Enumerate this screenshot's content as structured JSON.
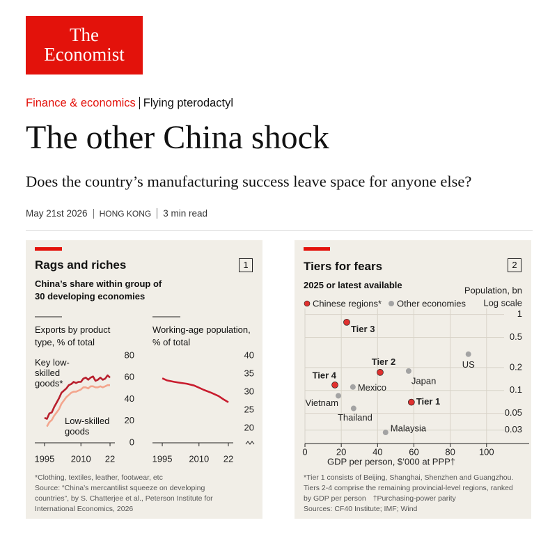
{
  "header": {
    "logo_line1": "The",
    "logo_line2": "Economist",
    "section": "Finance & economics",
    "rubric": "Flying pterodactyl",
    "title": "The other China shock",
    "subtitle": "Does the country’s manufacturing success leave space for anyone else?",
    "date": "May 21st 2026",
    "location": "HONG KONG",
    "read_time": "3 min read"
  },
  "panels": [
    {
      "title": "Rags and riches",
      "number": 1,
      "subtitle": "China’s share within group of 30 developing economies",
      "notes": [
        "*Clothing, textiles, leather, footwear, etc",
        "Source: “China’s mercantilist squeeze on developing countries”, by S. Chatterjee et al., Peterson Institute for International Economics, 2026"
      ]
    },
    {
      "title": "Tiers for fears",
      "number": 2,
      "subtitle": "2025 or latest available",
      "notes": [
        "*Tier 1 consists of Beijing, Shanghai, Shenzhen and Guangzhou. Tiers 2-4 comprise the remaining provincial-level regions, ranked by GDP per person",
        "†Purchasing-power parity",
        "Sources: CF40 Institute; IMF; Wind"
      ]
    }
  ],
  "chart_data": [
    {
      "type": "line",
      "title": "Exports by product type, % of total",
      "x": [
        1995,
        1996,
        1997,
        1998,
        1999,
        2000,
        2001,
        2002,
        2003,
        2004,
        2005,
        2006,
        2007,
        2008,
        2009,
        2010,
        2011,
        2012,
        2013,
        2014,
        2015,
        2016,
        2017,
        2018,
        2019,
        2020,
        2021,
        2022
      ],
      "series": [
        {
          "name": "Key low-skilled goods*",
          "color": "#b81f2d",
          "values": [
            23,
            22,
            27,
            28,
            33,
            37,
            41,
            46,
            48,
            50,
            53,
            54,
            56,
            55,
            56,
            56,
            59,
            60,
            58,
            60,
            61,
            57,
            58,
            60,
            58,
            59,
            62,
            60
          ]
        },
        {
          "name": "Low-skilled goods",
          "color": "#f3a58d",
          "values": [
            null,
            15,
            19,
            21,
            25,
            28,
            31,
            36,
            39,
            42,
            44,
            46,
            47,
            47,
            48,
            49,
            51,
            51,
            50,
            52,
            52,
            51,
            51,
            52,
            51,
            52,
            53,
            53
          ]
        }
      ],
      "xlim": [
        1991,
        2024
      ],
      "xticks": [
        1995,
        2010,
        {
          "value": 2022,
          "label": "22"
        }
      ],
      "ylim": [
        0,
        80
      ],
      "yticks": [
        0,
        20,
        40,
        60,
        80
      ]
    },
    {
      "type": "line",
      "title": "Working-age population, % of total",
      "x": [
        1995,
        1997,
        2000,
        2003,
        2005,
        2008,
        2010,
        2012,
        2015,
        2018,
        2020,
        2022
      ],
      "series": [
        {
          "color": "#c81c2e",
          "values": [
            33.8,
            33.2,
            32.8,
            32.5,
            32.3,
            31.8,
            31.2,
            30.6,
            29.8,
            28.9,
            28.0,
            27.2
          ]
        }
      ],
      "xlim": [
        1991,
        2024
      ],
      "xticks": [
        1995,
        2010,
        {
          "value": 2022,
          "label": "22"
        }
      ],
      "ylim": [
        16,
        40
      ],
      "yticks": [
        20,
        25,
        30,
        35,
        40
      ],
      "axis_break": true
    },
    {
      "type": "scatter",
      "x_label": "GDP per person, $’000 at PPP†",
      "y_label": "Population, bn",
      "log_scale_label": "Log scale",
      "log_y": true,
      "series": [
        {
          "name": "Chinese regions*",
          "color": "#e0312f",
          "x": [
            23,
            41.4,
            16.5,
            58.6
          ],
          "values": [
            0.79,
            0.173,
            0.118,
            0.07
          ],
          "labels": [
            "Tier 3",
            "Tier 2",
            "Tier 4",
            "Tier 1"
          ]
        },
        {
          "name": "Other economies",
          "color": "#a3a3a3",
          "x": [
            90,
            26.4,
            57.1,
            18.4,
            26.8,
            44.4
          ],
          "values": [
            0.3,
            0.111,
            0.18,
            0.085,
            0.058,
            0.028
          ],
          "labels": [
            "US",
            "Mexico",
            "Japan",
            "Vietnam",
            "Thailand",
            "Malaysia"
          ]
        }
      ],
      "xlim": [
        0,
        125
      ],
      "xticks": [
        0,
        20,
        40,
        60,
        80,
        100
      ],
      "ylim": [
        0.02,
        1.2
      ],
      "yticks": [
        1,
        0.5,
        0.2,
        0.1,
        0.05,
        0.03
      ],
      "grid": true,
      "legend": "top-left"
    }
  ]
}
